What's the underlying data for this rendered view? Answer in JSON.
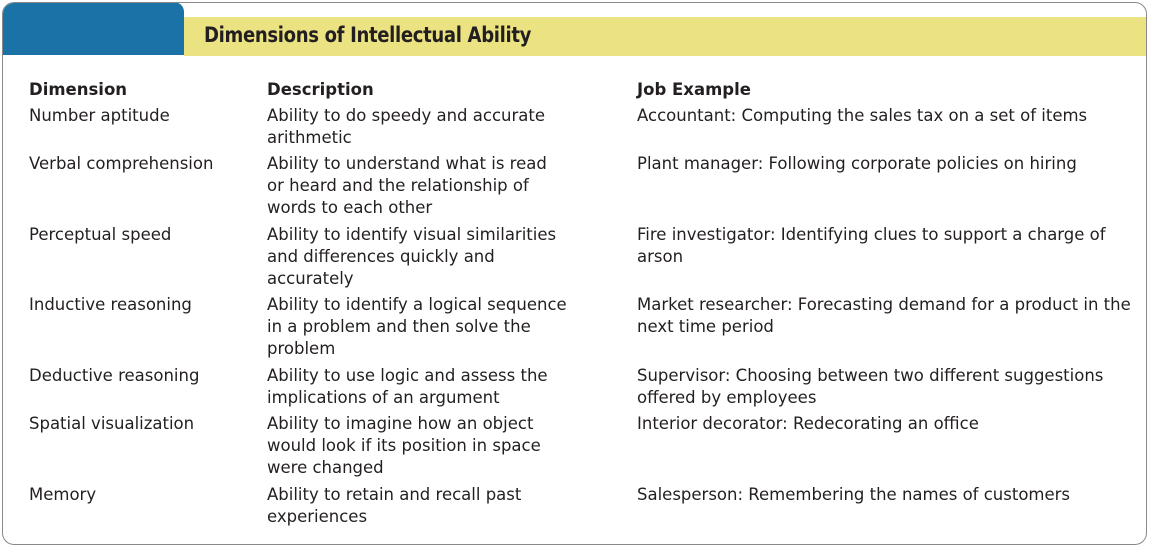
{
  "title": "Dimensions of Intellectual Ability",
  "headers": [
    "Dimension",
    "Description",
    "Job Example"
  ],
  "rows": [
    {
      "dimension": "Number aptitude",
      "description": "Ability to do speedy and accurate\narithmetic",
      "example": "Accountant: Computing the sales tax on a set of items"
    },
    {
      "dimension": "Verbal comprehension",
      "description": "Ability to understand what is read\nor heard and the relationship of\nwords to each other",
      "example": "Plant manager: Following corporate policies on hiring"
    },
    {
      "dimension": "Perceptual speed",
      "description": "Ability to identify visual similarities\nand differences quickly and\naccurately",
      "example": "Fire investigator: Identifying clues to support a charge of arson"
    },
    {
      "dimension": "Inductive reasoning",
      "description": "Ability to identify a logical sequence\nin a problem and then solve the\nproblem",
      "example": "Market researcher: Forecasting demand for a product in the\nnext time period"
    },
    {
      "dimension": "Deductive reasoning",
      "description": "Ability to use logic and assess the\nimplications of an argument",
      "example": "Supervisor: Choosing between two different suggestions\noffered by employees"
    },
    {
      "dimension": "Spatial visualization",
      "description": "Ability to imagine how an object\nwould look if its position in space\nwere changed",
      "example": "Interior decorator: Redecorating an office"
    },
    {
      "dimension": "Memory",
      "description": "Ability to retain and recall past\nexperiences",
      "example": "Salesperson: Remembering the names of customers"
    }
  ]
}
